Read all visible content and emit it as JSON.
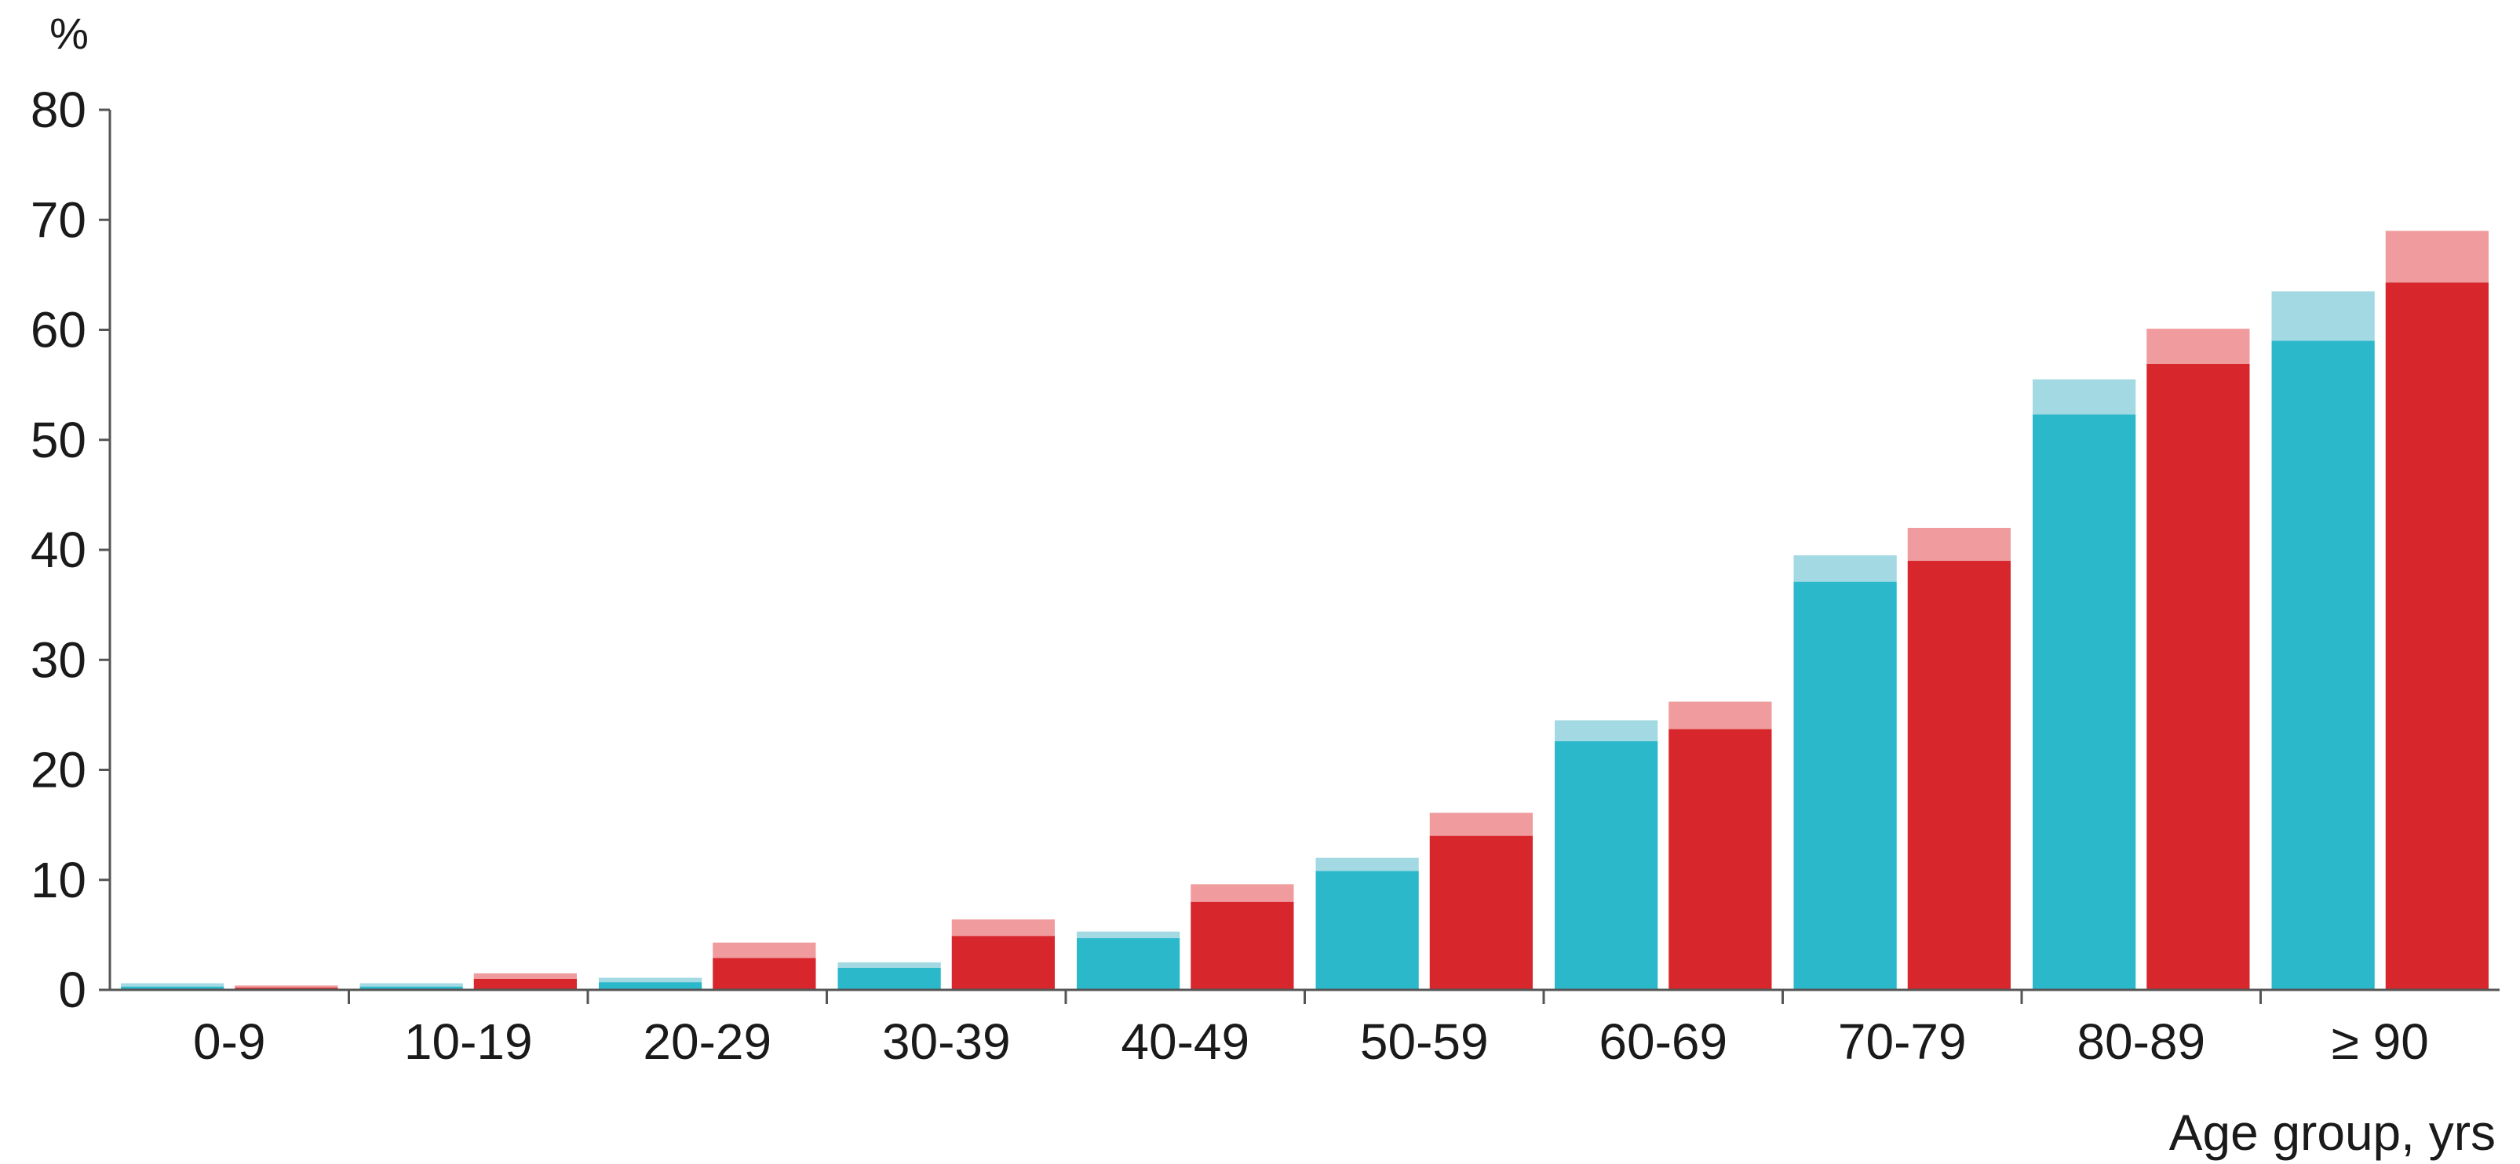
{
  "chart_data": {
    "type": "bar",
    "stacked_overlay": true,
    "title": "",
    "xlabel": "Age group, yrs",
    "ylabel": "%",
    "ylim": [
      0,
      80
    ],
    "yticks": [
      0,
      10,
      20,
      30,
      40,
      50,
      60,
      70,
      80
    ],
    "grid": false,
    "legend": "none",
    "categories": [
      "0-9",
      "10-19",
      "20-29",
      "30-39",
      "40-49",
      "50-59",
      "60-69",
      "70-79",
      "80-89",
      "≥ 90"
    ],
    "series": [
      {
        "color": "#2cb8cb",
        "top_color": "#a3d9e3",
        "values": [
          0.3,
          0.3,
          0.7,
          2.0,
          4.7,
          10.8,
          22.6,
          37.1,
          52.3,
          59.0
        ],
        "upper_values": [
          0.6,
          0.6,
          1.1,
          2.5,
          5.3,
          12.0,
          24.5,
          39.5,
          55.5,
          63.5
        ]
      },
      {
        "color": "#d8262d",
        "top_color": "#f09b9d",
        "values": [
          0.2,
          1.0,
          2.9,
          4.9,
          8.0,
          14.0,
          23.7,
          39.0,
          56.9,
          64.3
        ],
        "upper_values": [
          0.4,
          1.5,
          4.3,
          6.4,
          9.6,
          16.1,
          26.2,
          42.0,
          60.1,
          69.0
        ]
      }
    ]
  }
}
